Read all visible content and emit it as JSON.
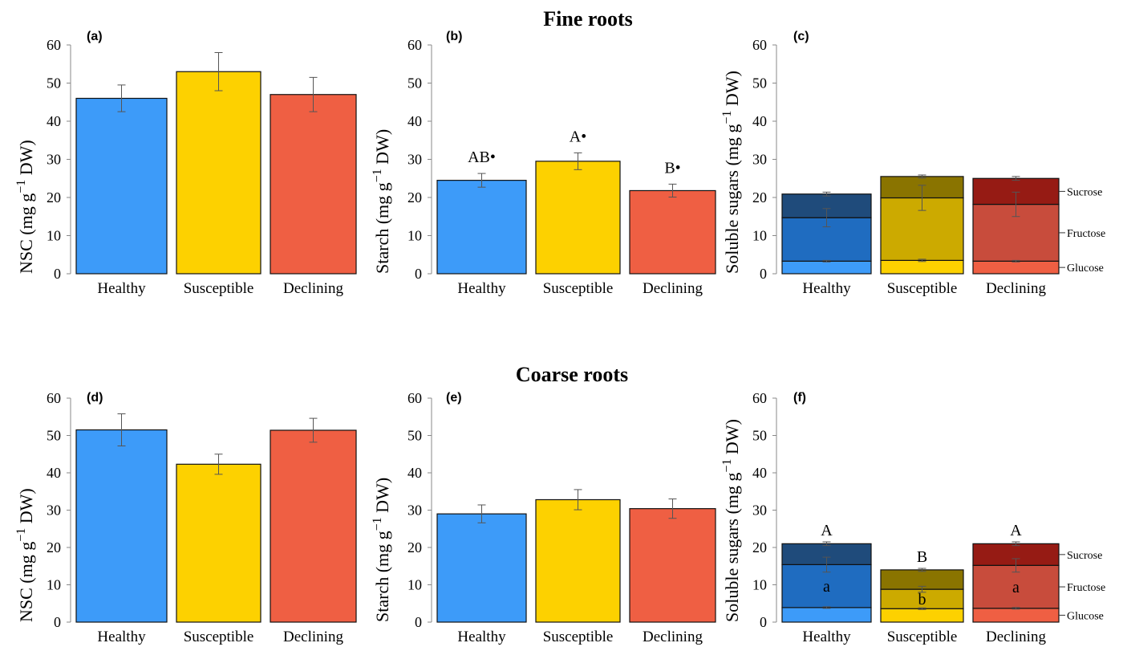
{
  "figure": {
    "titles": [
      "Fine roots",
      "Coarse roots"
    ]
  },
  "chart_data": [
    {
      "panel": "(a)",
      "type": "bar",
      "title": "",
      "ylabel": "NSC (mg g−1 DW)",
      "ylim": [
        0,
        60
      ],
      "yticks": [
        0,
        10,
        20,
        30,
        40,
        50,
        60
      ],
      "categories": [
        "Healthy",
        "Susceptible",
        "Declining"
      ],
      "values": [
        46,
        53,
        47
      ],
      "errors": [
        3.5,
        5,
        4.5
      ],
      "letters": [
        "",
        "",
        ""
      ],
      "colors": [
        "#3d9bf9",
        "#fdd100",
        "#ef5f43"
      ]
    },
    {
      "panel": "(b)",
      "type": "bar",
      "title": "",
      "ylabel": "Starch (mg g−1 DW)",
      "ylim": [
        0,
        60
      ],
      "yticks": [
        0,
        10,
        20,
        30,
        40,
        50,
        60
      ],
      "categories": [
        "Healthy",
        "Susceptible",
        "Declining"
      ],
      "values": [
        24.5,
        29.5,
        21.8
      ],
      "errors": [
        1.8,
        2.2,
        1.7
      ],
      "letters": [
        "AB•",
        "A•",
        "B•"
      ],
      "colors": [
        "#3d9bf9",
        "#fdd100",
        "#ef5f43"
      ]
    },
    {
      "panel": "(c)",
      "type": "stacked-bar",
      "title": "",
      "ylabel": "Soluble sugars (mg g−1 DW)",
      "ylim": [
        0,
        60
      ],
      "yticks": [
        0,
        10,
        20,
        30,
        40,
        50,
        60
      ],
      "categories": [
        "Healthy",
        "Susceptible",
        "Declining"
      ],
      "components": [
        "Glucose",
        "Fructose",
        "Sucrose"
      ],
      "series": [
        {
          "name": "Glucose",
          "values": [
            3.3,
            3.5,
            3.3
          ],
          "errors": [
            0.2,
            0.3,
            0.2
          ]
        },
        {
          "name": "Fructose",
          "values": [
            11.4,
            16.4,
            14.9
          ],
          "errors": [
            2.4,
            3.3,
            3.2
          ]
        },
        {
          "name": "Sucrose",
          "values": [
            6.2,
            5.6,
            6.8
          ],
          "errors": [
            0.5,
            0.4,
            0.5
          ]
        }
      ],
      "letters_total": [
        "",
        "",
        ""
      ],
      "letters_mid": [
        "",
        "",
        ""
      ],
      "colors": [
        [
          "#3d9bf9",
          "#1f6cc0",
          "#1f4b7b"
        ],
        [
          "#fdd100",
          "#ccaa00",
          "#8a7400"
        ],
        [
          "#ef5f43",
          "#c84c3c",
          "#961b14"
        ]
      ]
    },
    {
      "panel": "(d)",
      "type": "bar",
      "title": "",
      "ylabel": "NSC (mg g−1 DW)",
      "ylim": [
        0,
        60
      ],
      "yticks": [
        0,
        10,
        20,
        30,
        40,
        50,
        60
      ],
      "categories": [
        "Healthy",
        "Susceptible",
        "Declining"
      ],
      "values": [
        51.5,
        42.3,
        51.4
      ],
      "errors": [
        4.3,
        2.7,
        3.2
      ],
      "letters": [
        "",
        "",
        ""
      ],
      "colors": [
        "#3d9bf9",
        "#fdd100",
        "#ef5f43"
      ]
    },
    {
      "panel": "(e)",
      "type": "bar",
      "title": "",
      "ylabel": "Starch (mg g−1 DW)",
      "ylim": [
        0,
        60
      ],
      "yticks": [
        0,
        10,
        20,
        30,
        40,
        50,
        60
      ],
      "categories": [
        "Healthy",
        "Susceptible",
        "Declining"
      ],
      "values": [
        29,
        32.8,
        30.4
      ],
      "errors": [
        2.4,
        2.7,
        2.6
      ],
      "letters": [
        "",
        "",
        ""
      ],
      "colors": [
        "#3d9bf9",
        "#fdd100",
        "#ef5f43"
      ]
    },
    {
      "panel": "(f)",
      "type": "stacked-bar",
      "title": "",
      "ylabel": "Soluble sugars (mg g−1 DW)",
      "ylim": [
        0,
        60
      ],
      "yticks": [
        0,
        10,
        20,
        30,
        40,
        50,
        60
      ],
      "categories": [
        "Healthy",
        "Susceptible",
        "Declining"
      ],
      "components": [
        "Glucose",
        "Fructose",
        "Sucrose"
      ],
      "series": [
        {
          "name": "Glucose",
          "values": [
            3.9,
            3.6,
            3.7
          ],
          "errors": [
            0.2,
            0.2,
            0.2
          ]
        },
        {
          "name": "Fructose",
          "values": [
            11.5,
            5.2,
            11.5
          ],
          "errors": [
            2.0,
            0.8,
            1.8
          ]
        },
        {
          "name": "Sucrose",
          "values": [
            5.6,
            5.2,
            5.8
          ],
          "errors": [
            0.5,
            0.4,
            0.5
          ]
        }
      ],
      "letters_total": [
        "A",
        "B",
        "A"
      ],
      "letters_mid": [
        "a",
        "b",
        "a"
      ],
      "colors": [
        [
          "#3d9bf9",
          "#1f6cc0",
          "#1f4b7b"
        ],
        [
          "#fdd100",
          "#ccaa00",
          "#8a7400"
        ],
        [
          "#ef5f43",
          "#c84c3c",
          "#961b14"
        ]
      ]
    }
  ]
}
